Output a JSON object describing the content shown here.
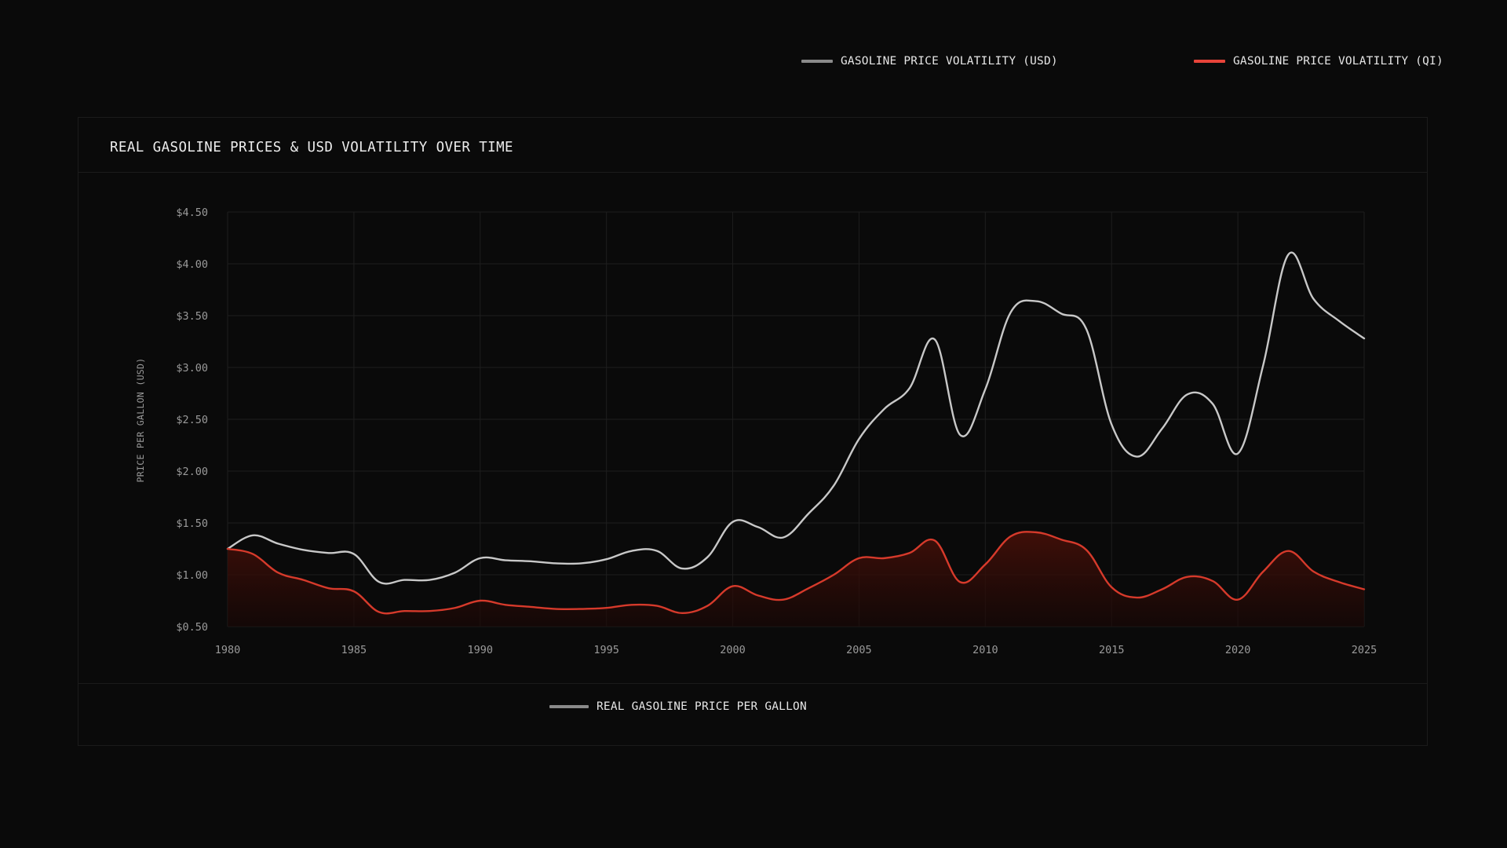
{
  "legend_top": [
    {
      "label": "GASOLINE PRICE VOLATILITY (USD)",
      "color": "#8a8a8a"
    },
    {
      "label": "GASOLINE PRICE VOLATILITY (QI)",
      "color": "#e8443a"
    }
  ],
  "legend_bottom": [
    {
      "label": "REAL GASOLINE PRICE PER GALLON",
      "color": "#8a8a8a"
    }
  ],
  "colors": {
    "background": "#0a0a0a",
    "grid": "#1e1e1e",
    "usd_line": "#c8c8c8",
    "qi_line": "#d63a2b",
    "qi_fill": "#3a0d08"
  },
  "chart_data": {
    "type": "line",
    "title": "REAL GASOLINE PRICES & USD VOLATILITY OVER TIME",
    "xlabel": "",
    "ylabel": "PRICE PER GALLON (USD)",
    "xlim": [
      1980,
      2025
    ],
    "ylim": [
      0.5,
      4.5
    ],
    "x_ticks": [
      "1980",
      "1985",
      "1990",
      "1995",
      "2000",
      "2005",
      "2010",
      "2015",
      "2020",
      "2025"
    ],
    "y_ticks": [
      "$0.50",
      "$1.00",
      "$1.50",
      "$2.00",
      "$2.50",
      "$3.00",
      "$3.50",
      "$4.00",
      "$4.50"
    ],
    "grid": true,
    "legend_position": "top-right",
    "x": [
      1980,
      1981,
      1982,
      1983,
      1984,
      1985,
      1986,
      1987,
      1988,
      1989,
      1990,
      1991,
      1992,
      1993,
      1994,
      1995,
      1996,
      1997,
      1998,
      1999,
      2000,
      2001,
      2002,
      2003,
      2004,
      2005,
      2006,
      2007,
      2008,
      2009,
      2010,
      2011,
      2012,
      2013,
      2014,
      2015,
      2016,
      2017,
      2018,
      2019,
      2020,
      2021,
      2022,
      2023,
      2024,
      2025
    ],
    "series": [
      {
        "name": "GASOLINE PRICE VOLATILITY (USD)",
        "color": "#c8c8c8",
        "values": [
          1.25,
          1.38,
          1.3,
          1.24,
          1.21,
          1.2,
          0.93,
          0.95,
          0.95,
          1.02,
          1.16,
          1.14,
          1.13,
          1.11,
          1.11,
          1.15,
          1.23,
          1.23,
          1.06,
          1.17,
          1.51,
          1.46,
          1.36,
          1.59,
          1.86,
          2.31,
          2.6,
          2.8,
          3.27,
          2.35,
          2.79,
          3.53,
          3.64,
          3.52,
          3.37,
          2.45,
          2.14,
          2.41,
          2.74,
          2.65,
          2.17,
          3.02,
          4.09,
          3.66,
          3.45,
          3.28
        ]
      },
      {
        "name": "GASOLINE PRICE VOLATILITY (QI)",
        "color": "#d63a2b",
        "values": [
          1.25,
          1.2,
          1.02,
          0.95,
          0.87,
          0.84,
          0.64,
          0.65,
          0.65,
          0.68,
          0.75,
          0.71,
          0.69,
          0.67,
          0.67,
          0.68,
          0.71,
          0.7,
          0.63,
          0.7,
          0.89,
          0.8,
          0.76,
          0.87,
          1.0,
          1.16,
          1.16,
          1.21,
          1.33,
          0.93,
          1.1,
          1.37,
          1.41,
          1.34,
          1.24,
          0.88,
          0.78,
          0.86,
          0.98,
          0.94,
          0.76,
          1.03,
          1.23,
          1.03,
          0.93,
          0.86
        ]
      }
    ]
  }
}
